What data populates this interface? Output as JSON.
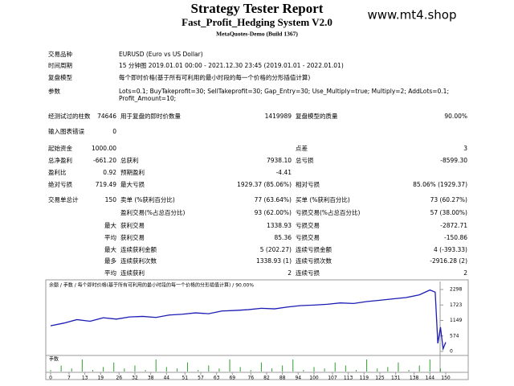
{
  "header": {
    "title": "Strategy Tester Report",
    "subtitle": "Fast_Profit_Hedging System V2.0",
    "build": "MetaQuotes-Demo (Build 1367)",
    "watermark": "www.mt4.shop"
  },
  "info": [
    {
      "label": "交易品种",
      "value": [
        "EURUSD (Euro vs US Dollar)"
      ]
    },
    {
      "label": "时间周期",
      "value": [
        "15 分钟图 2019.01.01 00:00 - 2021.12.30 23:45 (2019.01.01 - 2022.01.01)"
      ]
    },
    {
      "label": "复盘模型",
      "value": [
        "每个即时价格(基于所有可利用的最小时段的每一个价格的分形插值计算)"
      ]
    },
    {
      "label": "参数",
      "value": [
        "Lots=0.1; BuyTakeprofit=30; SellTakeprofit=30; Gap_Entry=30; Use_Multiply=true; Multiply=2; AddLots=0.1;",
        "Profit_Amount=10;"
      ]
    }
  ],
  "stats": [
    {
      "label": "经测试过的柱数",
      "value": "74646",
      "label2": "用于复盘的即时价数量",
      "value2": "1419989",
      "label3": "复盘模型的质量",
      "value3": "90.00%"
    },
    {
      "label": "输入图表错误",
      "value": "0"
    },
    {
      "label": "起始资金",
      "value": "1000.00",
      "label3": "点差",
      "value3": "3"
    },
    {
      "label": "总净盈利",
      "value": "-661.20",
      "label2": "总获利",
      "value2": "7938.10",
      "label3": "总亏损",
      "value3": "-8599.30"
    },
    {
      "label": "盈利比",
      "value": "0.92",
      "label2": "预期盈利",
      "value2": "-4.41"
    },
    {
      "label": "绝对亏损",
      "value": "719.49",
      "label2": "最大亏损",
      "value2": "1929.37 (85.06%)",
      "label3": "相对亏损",
      "value3": "85.06% (1929.37)"
    },
    {
      "label": "交易单总计",
      "value": "150",
      "label2": "卖单 (%获利百分比)",
      "value2": "77 (63.64%)",
      "label3": "买单 (%获利百分比)",
      "value3": "73 (60.27%)"
    },
    {
      "label2": "盈利交易(%占总百分比)",
      "value2": "93 (62.00%)",
      "label3": "亏损交易(%占总百分比)",
      "value3": "57 (38.00%)"
    },
    {
      "qualifier": "最大",
      "label2": "获利交易",
      "value2": "1338.93",
      "label3": "亏损交易",
      "value3": "-2872.71"
    },
    {
      "qualifier": "平均",
      "label2": "获利交易",
      "value2": "85.36",
      "label3": "亏损交易",
      "value3": "-150.86"
    },
    {
      "qualifier": "最大",
      "label2": "连续获利金额",
      "value2": "5 (202.27)",
      "label3": "连续亏损金额",
      "value3": "4 (-393.33)"
    },
    {
      "qualifier": "最多",
      "label2": "连续获利次数",
      "value2": "1338.93 (1)",
      "label3": "连续亏损次数",
      "value3": "-2916.28 (2)"
    },
    {
      "qualifier": "平均",
      "label2": "连续获利",
      "value2": "2",
      "label3": "连续亏损",
      "value3": "2"
    }
  ],
  "chart_data": {
    "type": "line",
    "legend": "余额 / 手数 / 每个即时价格(基于所有可利用的最小时段的每一个价格的分形插值计算) / 90.00%",
    "x": [
      0,
      5,
      10,
      15,
      20,
      25,
      30,
      35,
      40,
      45,
      50,
      55,
      60,
      65,
      70,
      75,
      80,
      85,
      90,
      95,
      100,
      105,
      110,
      115,
      120,
      125,
      130,
      135,
      140,
      144,
      146,
      147,
      148,
      149,
      150
    ],
    "series": [
      {
        "name": "余额",
        "color": "#1c1cb4",
        "values": [
          950,
          1050,
          1180,
          1120,
          1250,
          1200,
          1280,
          1300,
          1260,
          1350,
          1380,
          1430,
          1400,
          1500,
          1520,
          1550,
          1600,
          1580,
          1650,
          1700,
          1720,
          1750,
          1800,
          1780,
          1850,
          1900,
          1950,
          2000,
          2100,
          2280,
          2200,
          300,
          900,
          100,
          338
        ]
      }
    ],
    "xlim": [
      0,
      150
    ],
    "xticks": [
      0,
      7,
      13,
      19,
      26,
      32,
      38,
      44,
      51,
      57,
      63,
      69,
      76,
      82,
      88,
      94,
      100,
      107,
      113,
      119,
      125,
      131,
      138,
      144,
      150
    ],
    "ylim": [
      0,
      2298
    ],
    "yticks": [
      2298,
      1723,
      1149,
      574,
      0
    ],
    "lots": {
      "name": "手数",
      "color": "#2e9e2e",
      "x": [
        0,
        4,
        8,
        12,
        16,
        20,
        24,
        28,
        32,
        36,
        40,
        44,
        48,
        52,
        56,
        60,
        64,
        68,
        72,
        76,
        80,
        84,
        88,
        92,
        96,
        100,
        104,
        108,
        112,
        116,
        120,
        124,
        128,
        132,
        136,
        140,
        144,
        148
      ],
      "values": [
        0.1,
        0.4,
        0.2,
        0.8,
        0.1,
        0.3,
        0.6,
        0.2,
        0.4,
        0.1,
        0.8,
        0.3,
        0.2,
        0.6,
        0.1,
        0.4,
        0.2,
        0.8,
        0.3,
        0.1,
        0.6,
        0.2,
        0.4,
        0.8,
        0.1,
        0.3,
        0.2,
        0.6,
        0.4,
        0.1,
        0.8,
        0.2,
        0.3,
        0.6,
        0.1,
        0.4,
        0.8,
        0.2
      ]
    }
  }
}
